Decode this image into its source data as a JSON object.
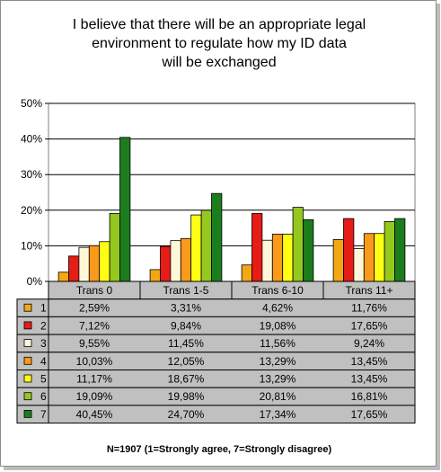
{
  "chart_data": {
    "type": "bar",
    "title": [
      "I believe that there will be an appropriate legal",
      "environment to regulate how my ID data",
      "will be exchanged"
    ],
    "categories": [
      "Trans 0",
      "Trans 1-5",
      "Trans 6-10",
      "Trans 11+"
    ],
    "y_ticks": [
      "0%",
      "10%",
      "20%",
      "30%",
      "40%",
      "50%"
    ],
    "ylim": [
      0,
      50
    ],
    "grid": true,
    "series": [
      {
        "name": "1",
        "color": "#f2a814",
        "values": [
          2.59,
          3.31,
          4.62,
          11.76
        ],
        "labels": [
          "2,59%",
          "3,31%",
          "4,62%",
          "11,76%"
        ]
      },
      {
        "name": "2",
        "color": "#e61c17",
        "values": [
          7.12,
          9.84,
          19.08,
          17.65
        ],
        "labels": [
          "7,12%",
          "9,84%",
          "19,08%",
          "17,65%"
        ]
      },
      {
        "name": "3",
        "color": "#fff8d8",
        "values": [
          9.55,
          11.45,
          11.56,
          9.24
        ],
        "labels": [
          "9,55%",
          "11,45%",
          "11,56%",
          "9,24%"
        ]
      },
      {
        "name": "4",
        "color": "#fa9a1a",
        "values": [
          10.03,
          12.05,
          13.29,
          13.45
        ],
        "labels": [
          "10,03%",
          "12,05%",
          "13,29%",
          "13,45%"
        ]
      },
      {
        "name": "5",
        "color": "#ffff14",
        "values": [
          11.17,
          18.67,
          13.29,
          13.45
        ],
        "labels": [
          "11,17%",
          "18,67%",
          "13,29%",
          "13,45%"
        ]
      },
      {
        "name": "6",
        "color": "#94c81e",
        "values": [
          19.09,
          19.98,
          20.81,
          16.81
        ],
        "labels": [
          "19,09%",
          "19,98%",
          "20,81%",
          "16,81%"
        ]
      },
      {
        "name": "7",
        "color": "#1c7d1c",
        "values": [
          40.45,
          24.7,
          17.34,
          17.65
        ],
        "labels": [
          "40,45%",
          "24,70%",
          "17,34%",
          "17,65%"
        ]
      }
    ],
    "footnote": "N=1907 (1=Strongly agree, 7=Strongly disagree)",
    "plot_background": "#ffffff",
    "table_background": "#c0c0c0"
  }
}
